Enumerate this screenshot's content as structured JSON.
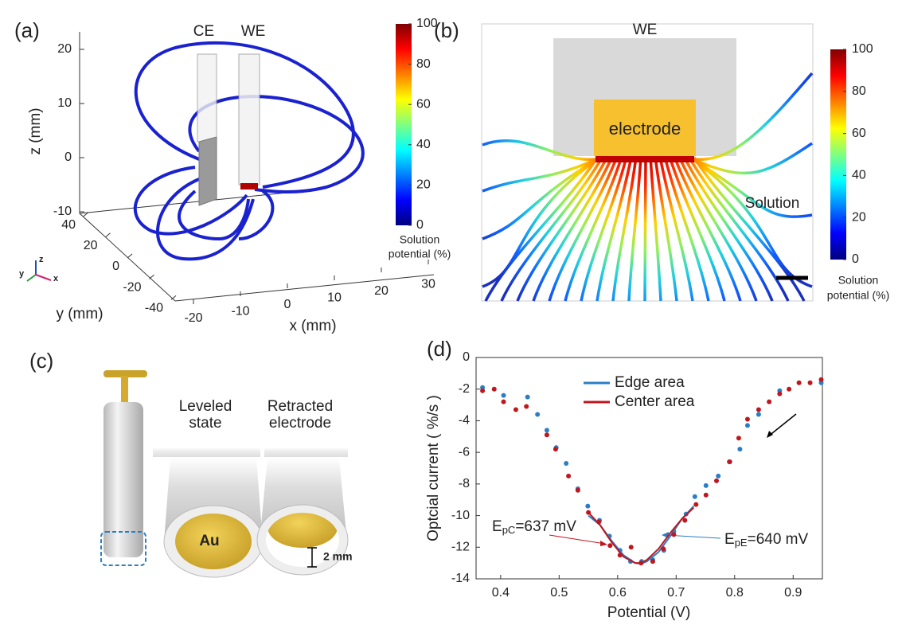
{
  "panels": {
    "a": {
      "label": "(a)",
      "electrodes": [
        "CE",
        "WE"
      ],
      "z_label": "z (mm)",
      "z_ticks": [
        20,
        10,
        0,
        -10
      ],
      "y_label": "y (mm)",
      "y_ticks": [
        40,
        20,
        0,
        -20,
        -40
      ],
      "x_label": "x (mm)",
      "x_ticks": [
        -20,
        -10,
        0,
        10,
        20,
        30
      ],
      "triad": [
        "z",
        "y",
        "x"
      ],
      "colorbar_ticks": [
        0,
        20,
        40,
        60,
        80,
        100
      ],
      "colorbar_label": [
        "Solution",
        "potential (%)"
      ]
    },
    "b": {
      "label": "(b)",
      "we": "WE",
      "electrode": "electrode",
      "solution": "Solution",
      "colorbar_ticks": [
        0,
        20,
        40,
        60,
        80,
        100
      ],
      "colorbar_label": [
        "Solution",
        "potential (%)"
      ]
    },
    "c": {
      "label": "(c)",
      "leveled": [
        "Leveled",
        "state"
      ],
      "retracted": [
        "Retracted",
        "electrode"
      ],
      "au": "Au",
      "gap": "2 mm"
    }
  },
  "chart_data": {
    "type": "scatter",
    "panel_label": "(d)",
    "xlabel": "Potential (V)",
    "ylabel": "Optcial current ( %/s )",
    "xlim": [
      0.358,
      0.95
    ],
    "ylim": [
      -14,
      0
    ],
    "xticks": [
      0.4,
      0.5,
      0.6,
      0.7,
      0.8,
      0.9
    ],
    "yticks": [
      0,
      -2,
      -4,
      -6,
      -8,
      -10,
      -12,
      -14
    ],
    "series": [
      {
        "name": "Edge area",
        "color": "#2a7fc4",
        "x": [
          0.369,
          0.405,
          0.446,
          0.463,
          0.479,
          0.495,
          0.512,
          0.532,
          0.549,
          0.569,
          0.586,
          0.604,
          0.622,
          0.641,
          0.66,
          0.679,
          0.696,
          0.717,
          0.732,
          0.751,
          0.772,
          0.792,
          0.809,
          0.822,
          0.841,
          0.877,
          0.948
        ],
        "values": [
          -1.9,
          -2.4,
          -2.5,
          -3.6,
          -4.6,
          -5.7,
          -6.7,
          -8.3,
          -9.4,
          -10.3,
          -11.3,
          -12.2,
          -12.9,
          -12.9,
          -12.8,
          -12.2,
          -11.0,
          -9.9,
          -8.8,
          -8.1,
          -7.5,
          -6.6,
          -5.8,
          -4.3,
          -3.6,
          -2.1,
          -1.6
        ],
        "fit_x": [
          0.55,
          0.57,
          0.59,
          0.61,
          0.63,
          0.64,
          0.65,
          0.67,
          0.69,
          0.71,
          0.73
        ],
        "fit_values": [
          -10.0,
          -10.6,
          -11.6,
          -12.5,
          -13.0,
          -13.05,
          -12.9,
          -12.3,
          -11.3,
          -10.2,
          -9.4
        ]
      },
      {
        "name": "Center area",
        "color": "#c0161e",
        "x": [
          0.369,
          0.389,
          0.405,
          0.426,
          0.444,
          0.479,
          0.494,
          0.516,
          0.532,
          0.55,
          0.568,
          0.587,
          0.604,
          0.623,
          0.64,
          0.66,
          0.678,
          0.696,
          0.715,
          0.734,
          0.751,
          0.769,
          0.791,
          0.807,
          0.822,
          0.841,
          0.859,
          0.877,
          0.893,
          0.91,
          0.929,
          0.948
        ],
        "values": [
          -2.1,
          -2.0,
          -2.8,
          -3.3,
          -3.1,
          -4.9,
          -5.8,
          -7.5,
          -8.4,
          -9.8,
          -10.4,
          -11.9,
          -12.5,
          -12.0,
          -13.0,
          -12.9,
          -12.1,
          -11.2,
          -10.3,
          -9.3,
          -8.7,
          -7.8,
          -6.6,
          -5.1,
          -3.9,
          -3.3,
          -2.8,
          -2.3,
          -2.0,
          -1.6,
          -1.6,
          -1.4
        ],
        "fit_x": [
          0.55,
          0.57,
          0.59,
          0.61,
          0.63,
          0.64,
          0.65,
          0.67,
          0.69,
          0.71,
          0.73
        ],
        "fit_values": [
          -9.8,
          -10.6,
          -11.7,
          -12.6,
          -13.0,
          -13.0,
          -12.8,
          -12.1,
          -11.1,
          -10.2,
          -9.5
        ]
      }
    ],
    "annotations": [
      {
        "text": "E",
        "sub": "pC",
        "rest": "=637 mV"
      },
      {
        "text": "E",
        "sub": "pE",
        "rest": "=640 mV"
      }
    ]
  }
}
